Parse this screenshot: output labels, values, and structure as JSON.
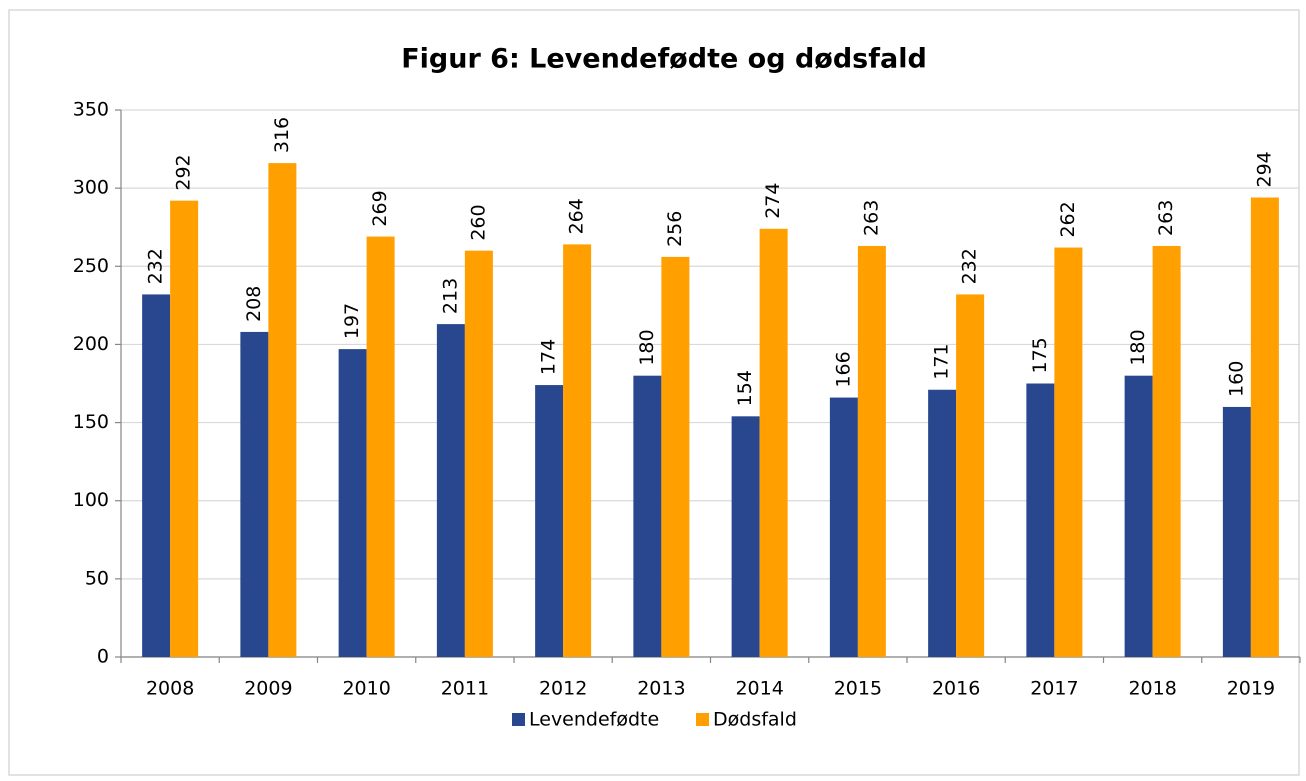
{
  "chart_data": {
    "type": "bar",
    "title": "Figur 6: Levendefødte og dødsfald",
    "categories": [
      "2008",
      "2009",
      "2010",
      "2011",
      "2012",
      "2013",
      "2014",
      "2015",
      "2016",
      "2017",
      "2018",
      "2019"
    ],
    "series": [
      {
        "name": "Levendefødte",
        "color": "#28478e",
        "values": [
          232,
          208,
          197,
          213,
          174,
          180,
          154,
          166,
          171,
          175,
          180,
          160
        ]
      },
      {
        "name": "Dødsfald",
        "color": "#ff9f00",
        "values": [
          292,
          316,
          269,
          260,
          264,
          256,
          274,
          263,
          232,
          262,
          263,
          294
        ]
      }
    ],
    "ylim": [
      0,
      350
    ],
    "yticks": [
      0,
      50,
      100,
      150,
      200,
      250,
      300,
      350
    ],
    "grid": true,
    "legend": "bottom"
  }
}
